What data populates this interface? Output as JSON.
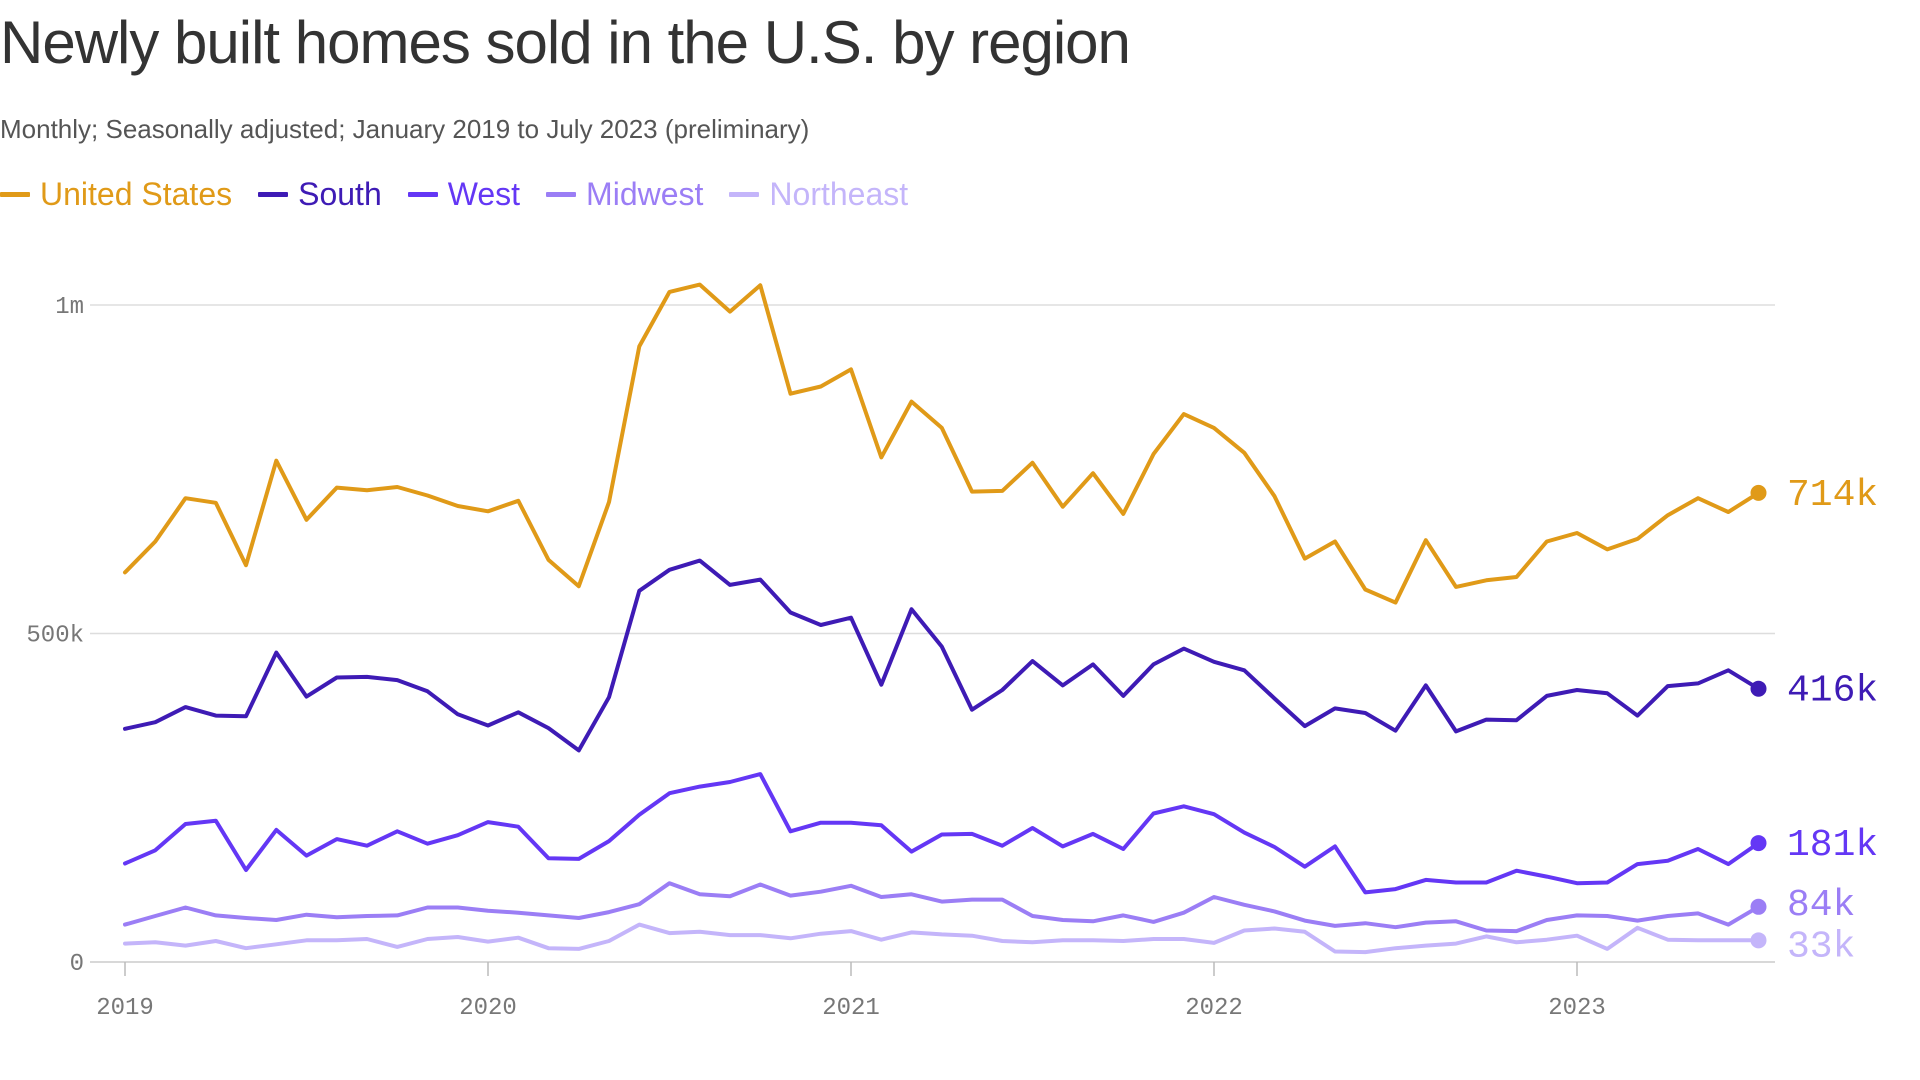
{
  "chart_data": {
    "type": "line",
    "title": "Newly built homes sold in the U.S. by region",
    "subtitle": "Monthly; Seasonally adjusted; January 2019 to July 2023 (preliminary)",
    "xlabel": "",
    "ylabel": "",
    "x_start": "2019-01",
    "x_end": "2023-07",
    "x_ticks": [
      "2019",
      "2020",
      "2021",
      "2022",
      "2023"
    ],
    "y_ticks": [
      0,
      500000,
      1000000
    ],
    "y_tick_labels": [
      "0",
      "500k",
      "1m"
    ],
    "ylim": [
      0,
      1000000
    ],
    "grid": "horizontal",
    "legend_position": "top-left",
    "series": [
      {
        "name": "United States",
        "color": "#E09A18",
        "end_label": "714k",
        "values": [
          593000,
          640000,
          706000,
          699000,
          604000,
          763000,
          673000,
          722000,
          718000,
          723000,
          710000,
          694000,
          686000,
          702000,
          612000,
          572000,
          700000,
          937000,
          1020000,
          1031000,
          990000,
          1030000,
          865000,
          876000,
          902000,
          768000,
          853000,
          813000,
          716000,
          717000,
          760000,
          693000,
          744000,
          682000,
          773000,
          834000,
          813000,
          775000,
          709000,
          614000,
          640000,
          567000,
          547000,
          642000,
          571000,
          581000,
          586000,
          640000,
          653000,
          628000,
          644000,
          680000,
          706000,
          685000,
          714000
        ]
      },
      {
        "name": "South",
        "color": "#3E1BB5",
        "end_label": "416k",
        "values": [
          355000,
          365000,
          388000,
          375000,
          374000,
          471000,
          404000,
          433000,
          434000,
          429000,
          412000,
          377000,
          360000,
          380000,
          356000,
          322000,
          403000,
          565000,
          597000,
          611000,
          574000,
          582000,
          532000,
          513000,
          524000,
          422000,
          537000,
          480000,
          384000,
          414000,
          458000,
          421000,
          453000,
          405000,
          453000,
          477000,
          457000,
          444000,
          401000,
          359000,
          386000,
          379000,
          352000,
          421000,
          351000,
          369000,
          368000,
          405000,
          414000,
          409000,
          375000,
          420000,
          424000,
          444000,
          416000
        ]
      },
      {
        "name": "West",
        "color": "#6437F5",
        "end_label": "181k",
        "values": [
          150000,
          170000,
          210000,
          215000,
          140000,
          201000,
          162000,
          187000,
          177000,
          199000,
          180000,
          193000,
          213000,
          206000,
          158000,
          157000,
          184000,
          224000,
          257000,
          267000,
          274000,
          286000,
          199000,
          212000,
          212000,
          208000,
          168000,
          194000,
          195000,
          177000,
          204000,
          176000,
          195000,
          172000,
          226000,
          237000,
          225000,
          197000,
          175000,
          145000,
          176000,
          106000,
          111000,
          125000,
          121000,
          121000,
          139000,
          130000,
          120000,
          121000,
          149000,
          154000,
          172000,
          149000,
          181000
        ]
      },
      {
        "name": "Midwest",
        "color": "#9B7EF5",
        "end_label": "84k",
        "values": [
          57000,
          70000,
          83000,
          71000,
          67000,
          64000,
          72000,
          68000,
          70000,
          71000,
          83000,
          83000,
          78000,
          75000,
          71000,
          67000,
          76000,
          88000,
          120000,
          103000,
          100000,
          118000,
          101000,
          107000,
          116000,
          99000,
          103000,
          92000,
          95000,
          95000,
          70000,
          64000,
          62000,
          71000,
          61000,
          75000,
          99000,
          87000,
          77000,
          63000,
          55000,
          59000,
          53000,
          60000,
          62000,
          48000,
          47000,
          64000,
          71000,
          70000,
          63000,
          70000,
          74000,
          57000,
          84000
        ]
      },
      {
        "name": "Northeast",
        "color": "#C4B5FA",
        "end_label": "33k",
        "values": [
          28000,
          30000,
          25000,
          32000,
          21000,
          27000,
          33000,
          33000,
          35000,
          23000,
          35000,
          38000,
          31000,
          37000,
          21000,
          20000,
          32000,
          57000,
          44000,
          46000,
          41000,
          41000,
          36000,
          43000,
          47000,
          34000,
          45000,
          42000,
          40000,
          32000,
          30000,
          33000,
          33000,
          32000,
          35000,
          35000,
          29000,
          48000,
          51000,
          46000,
          16000,
          15000,
          21000,
          25000,
          28000,
          39000,
          30000,
          34000,
          40000,
          20000,
          52000,
          34000,
          33000,
          33000,
          33000
        ]
      }
    ]
  }
}
